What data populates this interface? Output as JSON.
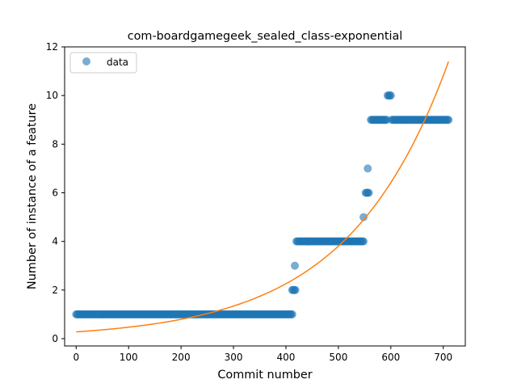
{
  "chart_data": {
    "type": "scatter",
    "title": "com-boardgamegeek_sealed_class-exponential",
    "xlabel": "Commit number",
    "ylabel": "Number of instance of a feature",
    "xlim": [
      -22,
      742
    ],
    "ylim": [
      -0.3,
      12.0
    ],
    "xticks": [
      0,
      100,
      200,
      300,
      400,
      500,
      600,
      700
    ],
    "yticks": [
      0,
      2,
      4,
      6,
      8,
      10,
      12
    ],
    "grid": false,
    "legend": {
      "placement": "top-left",
      "entries": [
        "data"
      ]
    },
    "colors": {
      "data": "#1f77b4",
      "fit": "#ff7f0e",
      "axes": "#000000"
    },
    "series": [
      {
        "name": "data",
        "kind": "scatter",
        "runs": [
          {
            "x_start": 0,
            "x_end": 413,
            "step": 2,
            "y": 1
          },
          {
            "x_start": 412,
            "x_end": 418,
            "step": 2,
            "y": 2
          },
          {
            "x_start": 420,
            "x_end": 548,
            "step": 2,
            "y": 4
          },
          {
            "x_start": 552,
            "x_end": 558,
            "step": 2,
            "y": 6
          },
          {
            "x_start": 562,
            "x_end": 592,
            "step": 2,
            "y": 9
          },
          {
            "x_start": 594,
            "x_end": 600,
            "step": 2,
            "y": 10
          },
          {
            "x_start": 602,
            "x_end": 710,
            "step": 2,
            "y": 9
          }
        ],
        "points": [
          {
            "x": 417,
            "y": 3
          },
          {
            "x": 548,
            "y": 5
          },
          {
            "x": 556,
            "y": 7
          }
        ]
      },
      {
        "kind": "line",
        "model": "exponential",
        "a": 0.28,
        "b": 0.00522,
        "x_range": [
          0,
          710
        ]
      }
    ]
  }
}
